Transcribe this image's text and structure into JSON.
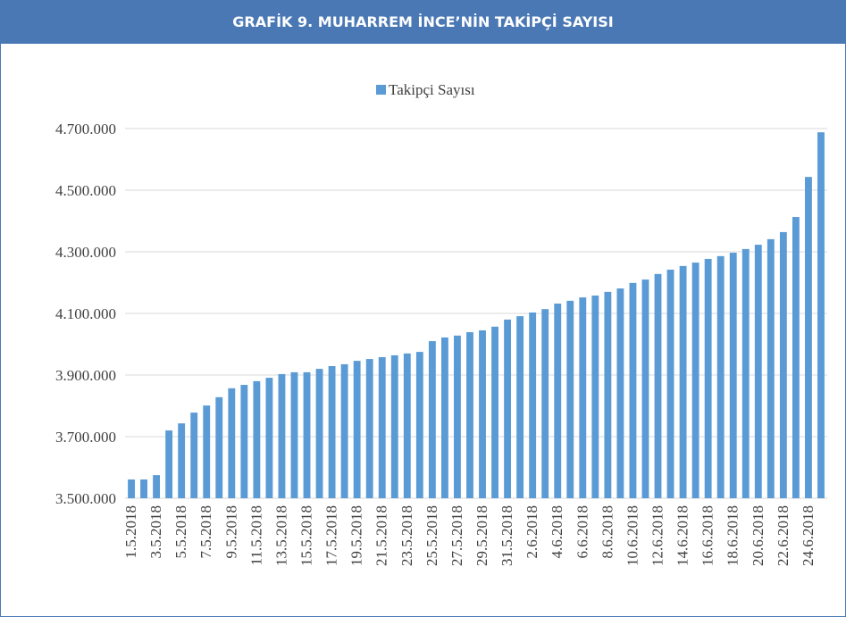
{
  "chart_data": {
    "type": "bar",
    "title": "GRAFİK 9. MUHARREM İNCE’NİN TAKİPÇİ SAYISI",
    "categories": [
      "1.5.2018",
      null,
      "3.5.2018",
      null,
      "5.5.2018",
      null,
      "7.5.2018",
      null,
      "9.5.2018",
      null,
      "11.5.2018",
      null,
      "13.5.2018",
      null,
      "15.5.2018",
      null,
      "17.5.2018",
      null,
      "19.5.2018",
      null,
      "21.5.2018",
      null,
      "23.5.2018",
      null,
      "25.5.2018",
      null,
      "27.5.2018",
      null,
      "29.5.2018",
      null,
      "31.5.2018",
      null,
      "2.6.2018",
      null,
      "4.6.2018",
      null,
      "6.6.2018",
      null,
      "8.6.2018",
      null,
      "10.6.2018",
      null,
      "12.6.2018",
      null,
      "14.6.2018",
      null,
      "16.6.2018",
      null,
      "18.6.2018",
      null,
      "20.6.2018",
      null,
      "22.6.2018",
      null,
      "24.6.2018",
      null
    ],
    "series": [
      {
        "name": "Takipçi Sayısı",
        "color": "#5b9bd5",
        "values": [
          3561000,
          3561000,
          3575000,
          3720000,
          3743000,
          3778000,
          3801000,
          3828000,
          3857000,
          3868000,
          3880000,
          3891000,
          3903000,
          3909000,
          3909000,
          3920000,
          3929000,
          3935000,
          3946000,
          3952000,
          3958000,
          3964000,
          3970000,
          3975000,
          4010000,
          4022000,
          4028000,
          4039000,
          4045000,
          4057000,
          4080000,
          4091000,
          4103000,
          4114000,
          4132000,
          4141000,
          4152000,
          4158000,
          4170000,
          4181000,
          4199000,
          4210000,
          4228000,
          4242000,
          4254000,
          4265000,
          4277000,
          4286000,
          4297000,
          4309000,
          4323000,
          4341000,
          4364000,
          4413000,
          4543000,
          4688000
        ]
      }
    ],
    "ylim": [
      3500000,
      4700000
    ],
    "yticks": [
      {
        "value": 3500000,
        "label": "3.500.000"
      },
      {
        "value": 3700000,
        "label": "3.700.000"
      },
      {
        "value": 3900000,
        "label": "3.900.000"
      },
      {
        "value": 4100000,
        "label": "4.100.000"
      },
      {
        "value": 4300000,
        "label": "4.300.000"
      },
      {
        "value": 4500000,
        "label": "4.500.000"
      },
      {
        "value": 4700000,
        "label": "4.700.000"
      }
    ],
    "grid": true,
    "legend": "top"
  }
}
